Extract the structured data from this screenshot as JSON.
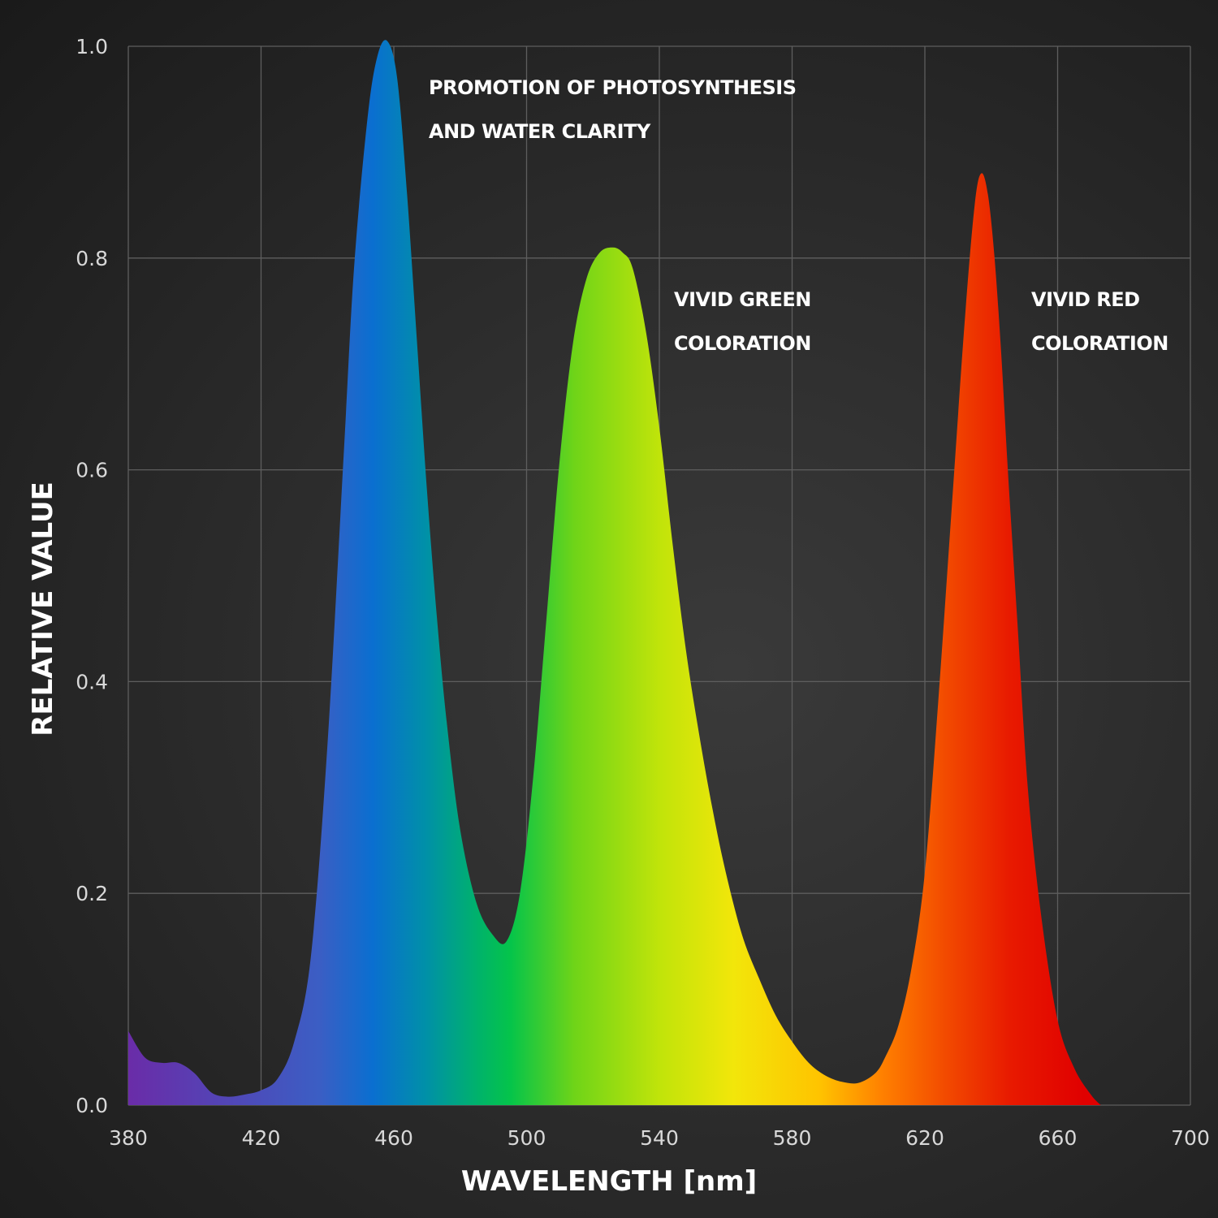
{
  "chart_data": {
    "type": "area",
    "title": "",
    "xlabel": "WAVELENGTH [nm]",
    "ylabel": "RELATIVE VALUE",
    "xlim": [
      380,
      700
    ],
    "ylim": [
      0,
      1
    ],
    "grid": true,
    "x_ticks": [
      380,
      420,
      460,
      500,
      540,
      580,
      620,
      660,
      700
    ],
    "x_tick_labels": [
      "380",
      "420",
      "460",
      "500",
      "540",
      "580",
      "620",
      "660",
      "700"
    ],
    "y_ticks": [
      0,
      0.2,
      0.4,
      0.6,
      0.8,
      1.0
    ],
    "y_tick_labels": [
      "0.0",
      "0.2",
      "0.4",
      "0.6",
      "0.8",
      "1.0"
    ],
    "series": [
      {
        "name": "spectrum",
        "x": [
          380,
          385,
          390,
          395,
          400,
          405,
          410,
          415,
          420,
          425,
          430,
          435,
          440,
          445,
          448,
          452,
          455,
          458,
          461,
          464,
          467,
          470,
          473,
          476,
          480,
          485,
          490,
          494,
          498,
          502,
          506,
          510,
          514,
          518,
          522,
          526,
          529,
          532,
          536,
          540,
          544,
          548,
          552,
          556,
          560,
          565,
          570,
          575,
          580,
          585,
          590,
          595,
          600,
          605,
          608,
          612,
          616,
          620,
          624,
          628,
          632,
          635,
          637,
          639,
          641,
          643,
          645,
          648,
          651,
          655,
          660,
          665,
          670,
          673
        ],
        "y": [
          0.07,
          0.045,
          0.04,
          0.04,
          0.03,
          0.012,
          0.008,
          0.01,
          0.014,
          0.025,
          0.06,
          0.14,
          0.34,
          0.62,
          0.79,
          0.93,
          0.99,
          1.005,
          0.97,
          0.86,
          0.72,
          0.58,
          0.46,
          0.36,
          0.26,
          0.19,
          0.16,
          0.155,
          0.2,
          0.31,
          0.46,
          0.61,
          0.72,
          0.78,
          0.805,
          0.81,
          0.805,
          0.79,
          0.73,
          0.64,
          0.53,
          0.43,
          0.35,
          0.28,
          0.22,
          0.16,
          0.12,
          0.085,
          0.06,
          0.04,
          0.028,
          0.022,
          0.021,
          0.03,
          0.045,
          0.075,
          0.13,
          0.22,
          0.38,
          0.56,
          0.74,
          0.85,
          0.88,
          0.86,
          0.8,
          0.71,
          0.6,
          0.45,
          0.3,
          0.18,
          0.08,
          0.035,
          0.01,
          0.0
        ]
      }
    ],
    "annotations": [
      {
        "name": "photosynthesis",
        "lines": [
          "PROMOTION OF PHOTOSYNTHESIS",
          "AND WATER CLARITY"
        ]
      },
      {
        "name": "green",
        "lines": [
          "VIVID GREEN",
          "COLORATION"
        ]
      },
      {
        "name": "red",
        "lines": [
          "VIVID RED",
          "COLORATION"
        ]
      }
    ],
    "gradient_colors": [
      "#6a2ca8",
      "#3b5ec4",
      "#0a6fd0",
      "#0090a8",
      "#00b36a",
      "#05c44a",
      "#6fd418",
      "#c0e40a",
      "#f2e60a",
      "#ffc400",
      "#ff8000",
      "#f24a00",
      "#e81a00",
      "#e00000"
    ]
  }
}
